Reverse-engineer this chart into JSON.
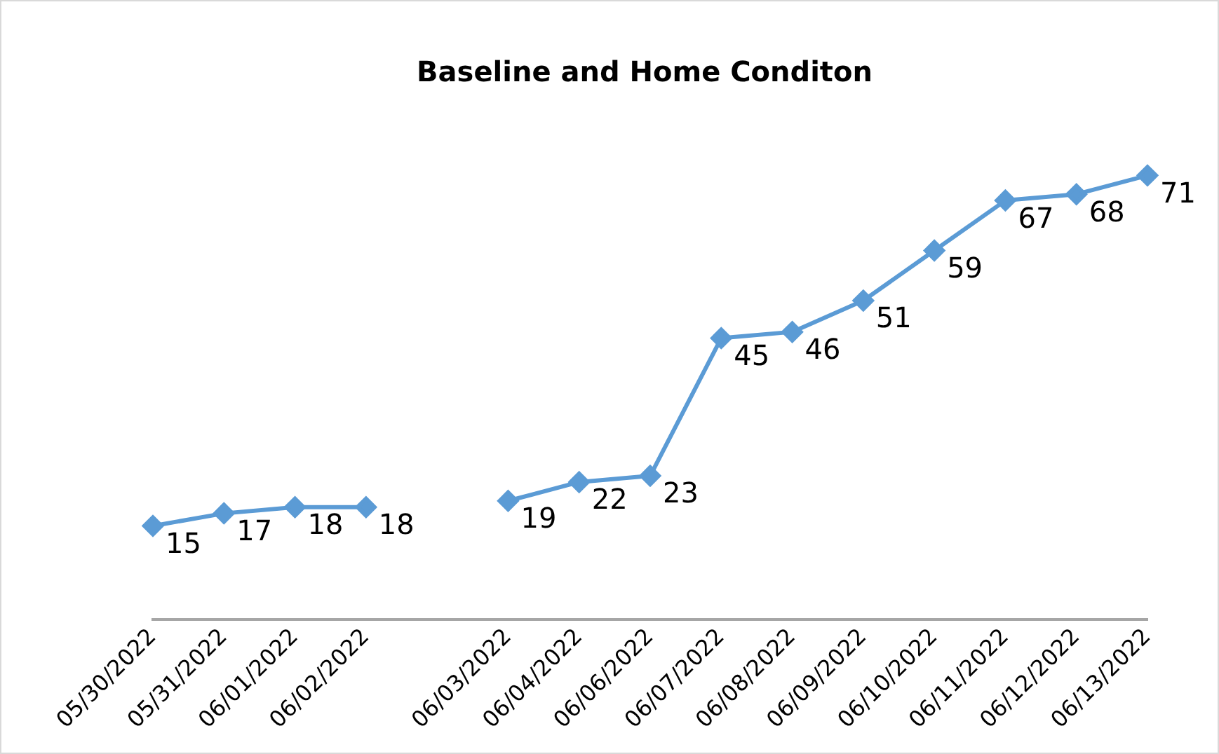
{
  "chart_data": {
    "type": "line",
    "title": "Baseline and Home Conditon",
    "categories": [
      "05/30/2022",
      "05/31/2022",
      "06/01/2022",
      "06/02/2022",
      null,
      "06/03/2022",
      "06/04/2022",
      "06/06/2022",
      "06/07/2022",
      "06/08/2022",
      "06/09/2022",
      "06/10/2022",
      "06/11/2022",
      "06/12/2022",
      "06/13/2022"
    ],
    "series": [
      {
        "color": "#5b9bd5",
        "values": [
          15,
          17,
          18,
          18,
          null,
          19,
          22,
          23,
          45,
          46,
          51,
          59,
          67,
          68,
          71
        ]
      }
    ],
    "tick_labels": "x",
    "grid": false,
    "marker": "diamond",
    "line_style": "solid",
    "data_labels": true
  }
}
